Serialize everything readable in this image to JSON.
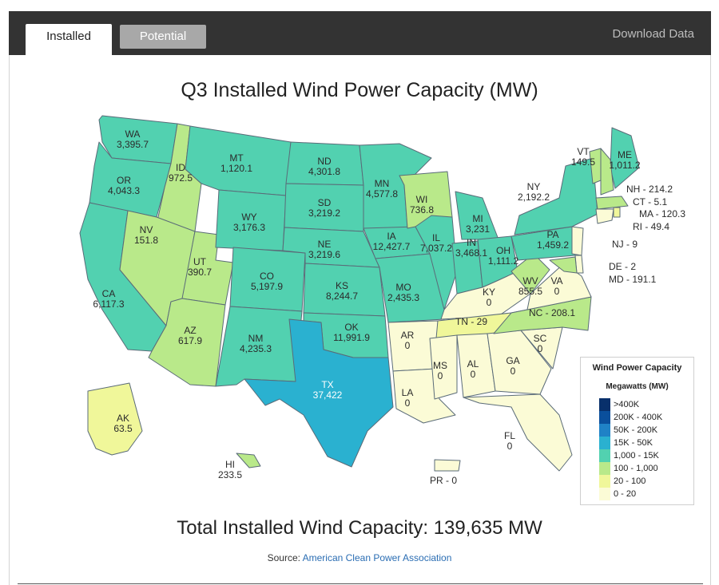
{
  "tabs": [
    {
      "label": "Installed",
      "active": true
    },
    {
      "label": "Potential",
      "active": false
    }
  ],
  "download_label": "Download Data",
  "title": "Q3 Installed Wind Power Capacity (MW)",
  "legend": {
    "title": "Wind Power Capacity",
    "subtitle": "Megawatts (MW)",
    "bins": [
      {
        "label": ">400K",
        "color": "#08306b"
      },
      {
        "label": "200K - 400K",
        "color": "#0a4f9c"
      },
      {
        "label": "50K - 200K",
        "color": "#1f82c6"
      },
      {
        "label": "15K - 50K",
        "color": "#2ab1d0"
      },
      {
        "label": "1,000 - 15K",
        "color": "#52d1b0"
      },
      {
        "label": "100 - 1,000",
        "color": "#b9e98a"
      },
      {
        "label": "20 - 100",
        "color": "#f0f79a"
      },
      {
        "label": "0 - 20",
        "color": "#fbfbd6"
      }
    ]
  },
  "states": [
    {
      "abbr": "WA",
      "value": "3,395.7"
    },
    {
      "abbr": "OR",
      "value": "4,043.3"
    },
    {
      "abbr": "CA",
      "value": "6,117.3"
    },
    {
      "abbr": "ID",
      "value": "972.5"
    },
    {
      "abbr": "NV",
      "value": "151.8"
    },
    {
      "abbr": "UT",
      "value": "390.7"
    },
    {
      "abbr": "AZ",
      "value": "617.9"
    },
    {
      "abbr": "MT",
      "value": "1,120.1"
    },
    {
      "abbr": "WY",
      "value": "3,176.3"
    },
    {
      "abbr": "CO",
      "value": "5,197.9"
    },
    {
      "abbr": "NM",
      "value": "4,235.3"
    },
    {
      "abbr": "ND",
      "value": "4,301.8"
    },
    {
      "abbr": "SD",
      "value": "3,219.2"
    },
    {
      "abbr": "NE",
      "value": "3,219.6"
    },
    {
      "abbr": "KS",
      "value": "8,244.7"
    },
    {
      "abbr": "OK",
      "value": "11,991.9"
    },
    {
      "abbr": "TX",
      "value": "37,422"
    },
    {
      "abbr": "MN",
      "value": "4,577.8"
    },
    {
      "abbr": "IA",
      "value": "12,427.7"
    },
    {
      "abbr": "MO",
      "value": "2,435.3"
    },
    {
      "abbr": "AR",
      "value": "0"
    },
    {
      "abbr": "LA",
      "value": "0"
    },
    {
      "abbr": "WI",
      "value": "736.8"
    },
    {
      "abbr": "IL",
      "value": "7,037.2"
    },
    {
      "abbr": "MI",
      "value": "3,231"
    },
    {
      "abbr": "IN",
      "value": "3,468.1"
    },
    {
      "abbr": "OH",
      "value": "1,111.2"
    },
    {
      "abbr": "KY",
      "value": "0"
    },
    {
      "abbr": "TN",
      "value": "29"
    },
    {
      "abbr": "MS",
      "value": "0"
    },
    {
      "abbr": "AL",
      "value": "0"
    },
    {
      "abbr": "GA",
      "value": "0"
    },
    {
      "abbr": "FL",
      "value": "0"
    },
    {
      "abbr": "SC",
      "value": "0"
    },
    {
      "abbr": "NC",
      "value": "208.1"
    },
    {
      "abbr": "VA",
      "value": "0"
    },
    {
      "abbr": "WV",
      "value": "855.5"
    },
    {
      "abbr": "PA",
      "value": "1,459.2"
    },
    {
      "abbr": "NY",
      "value": "2,192.2"
    },
    {
      "abbr": "VT",
      "value": "149.5"
    },
    {
      "abbr": "ME",
      "value": "1,011.2"
    },
    {
      "abbr": "NH",
      "value": "214.2"
    },
    {
      "abbr": "MA",
      "value": "120.3"
    },
    {
      "abbr": "CT",
      "value": "5.1"
    },
    {
      "abbr": "RI",
      "value": "49.4"
    },
    {
      "abbr": "NJ",
      "value": "9"
    },
    {
      "abbr": "DE",
      "value": "2"
    },
    {
      "abbr": "MD",
      "value": "191.1"
    },
    {
      "abbr": "AK",
      "value": "63.5"
    },
    {
      "abbr": "HI",
      "value": "233.5"
    },
    {
      "abbr": "PR",
      "value": "0"
    }
  ],
  "total": "Total Installed Wind Capacity: 139,635 MW",
  "source": {
    "prefix": "Source: ",
    "link": "American Clean Power Association"
  }
}
